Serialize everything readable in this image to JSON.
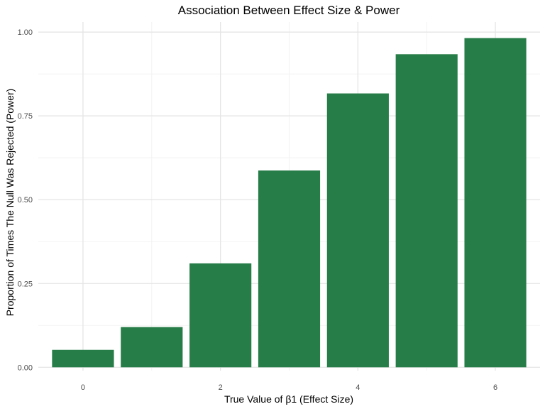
{
  "chart_data": {
    "type": "bar",
    "title": "Association Between Effect Size & Power",
    "xlabel": "True Value of β1 (Effect Size)",
    "ylabel": "Proportion of Times The Null Was Rejected (Power)",
    "x": [
      0,
      1,
      2,
      3,
      4,
      5,
      6
    ],
    "values": [
      0.052,
      0.12,
      0.31,
      0.587,
      0.817,
      0.934,
      0.982
    ],
    "x_ticks": [
      0,
      2,
      4,
      6
    ],
    "x_tick_labels": [
      "0",
      "2",
      "4",
      "6"
    ],
    "y_ticks": [
      0,
      0.25,
      0.5,
      0.75,
      1
    ],
    "y_tick_labels": [
      "0.00",
      "0.25",
      "0.50",
      "0.75",
      "1.00"
    ],
    "xlim": [
      -0.65,
      6.65
    ],
    "ylim": [
      -0.01,
      1.03
    ],
    "bar_color": "#277d48",
    "grid": true,
    "legend": "none"
  }
}
